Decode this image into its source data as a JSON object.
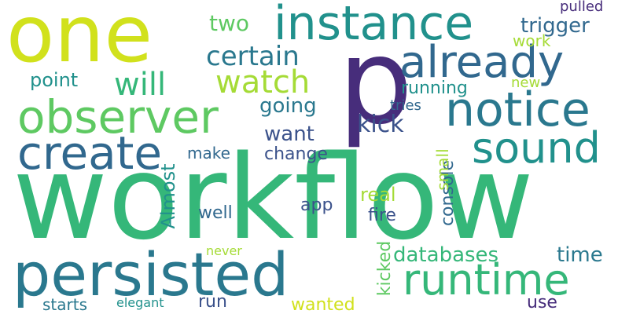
{
  "palette": {
    "background": "#ffffff",
    "lime": "#d1e11c",
    "yellow_green": "#a5db36",
    "green": "#5ec962",
    "emerald": "#35b779",
    "teal": "#21918c",
    "blue_teal": "#2a788e",
    "steel_blue": "#31688e",
    "indigo": "#3b528b",
    "purple": "#472d7b",
    "dark_purple": "#440154"
  },
  "words": [
    {
      "text": "workflow",
      "color": "#35b779"
    },
    {
      "text": "p",
      "color": "#472d7b"
    },
    {
      "text": "one",
      "color": "#d1e11c"
    },
    {
      "text": "persisted",
      "color": "#2a788e"
    },
    {
      "text": "instance",
      "color": "#21918c"
    },
    {
      "text": "already",
      "color": "#31688e"
    },
    {
      "text": "notice",
      "color": "#2a788e"
    },
    {
      "text": "observer",
      "color": "#5ec962"
    },
    {
      "text": "create",
      "color": "#31688e"
    },
    {
      "text": "sound",
      "color": "#21918c"
    },
    {
      "text": "runtime",
      "color": "#35b779"
    },
    {
      "text": "watch",
      "color": "#a5db36"
    },
    {
      "text": "will",
      "color": "#35b779"
    },
    {
      "text": "certain",
      "color": "#2a788e"
    },
    {
      "text": "two",
      "color": "#5ec962"
    },
    {
      "text": "trigger",
      "color": "#31688e"
    },
    {
      "text": "work",
      "color": "#a5db36"
    },
    {
      "text": "pulled",
      "color": "#472d7b"
    },
    {
      "text": "point",
      "color": "#21918c"
    },
    {
      "text": "running",
      "color": "#21918c"
    },
    {
      "text": "new",
      "color": "#a5db36"
    },
    {
      "text": "going",
      "color": "#2a788e"
    },
    {
      "text": "tries",
      "color": "#31688e"
    },
    {
      "text": "kick",
      "color": "#3b528b"
    },
    {
      "text": "want",
      "color": "#3b528b"
    },
    {
      "text": "make",
      "color": "#31688e"
    },
    {
      "text": "change",
      "color": "#3b528b"
    },
    {
      "text": "console",
      "color": "#31688e"
    },
    {
      "text": "small",
      "color": "#a5db36"
    },
    {
      "text": "real",
      "color": "#a5db36"
    },
    {
      "text": "app",
      "color": "#3b528b"
    },
    {
      "text": "well",
      "color": "#31688e"
    },
    {
      "text": "fire",
      "color": "#3b528b"
    },
    {
      "text": "Almost",
      "color": "#21918c"
    },
    {
      "text": "kicked",
      "color": "#5ec962"
    },
    {
      "text": "databases",
      "color": "#35b779"
    },
    {
      "text": "time",
      "color": "#2a788e"
    },
    {
      "text": "never",
      "color": "#a5db36"
    },
    {
      "text": "run",
      "color": "#3b528b"
    },
    {
      "text": "starts",
      "color": "#2a788e"
    },
    {
      "text": "elegant",
      "color": "#21918c"
    },
    {
      "text": "wanted",
      "color": "#d1e11c"
    },
    {
      "text": "use",
      "color": "#472d7b"
    }
  ]
}
